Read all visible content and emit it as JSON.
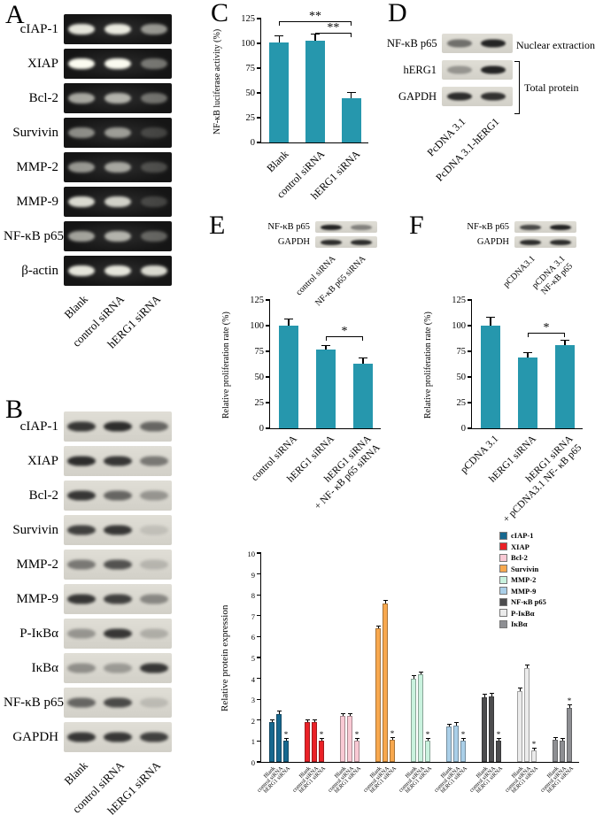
{
  "figure": {
    "panel_a": {
      "label": "A",
      "lanes": [
        "Blank",
        "control siRNA",
        "hERG1 siRNA"
      ],
      "rows": [
        {
          "name": "cIAP-1",
          "bands": [
            0.9,
            0.92,
            0.55
          ]
        },
        {
          "name": "XIAP",
          "bands": [
            1.0,
            1.0,
            0.4
          ]
        },
        {
          "name": "Bcl-2",
          "bands": [
            0.62,
            0.66,
            0.38
          ]
        },
        {
          "name": "Survivin",
          "bands": [
            0.5,
            0.55,
            0.18
          ]
        },
        {
          "name": "MMP-2",
          "bands": [
            0.55,
            0.6,
            0.22
          ]
        },
        {
          "name": "MMP-9",
          "bands": [
            0.85,
            0.8,
            0.18
          ]
        },
        {
          "name": "NF-κB p65",
          "bands": [
            0.6,
            0.66,
            0.32
          ]
        },
        {
          "name": "β-actin",
          "bands": [
            0.9,
            0.9,
            0.85
          ]
        }
      ]
    },
    "panel_b": {
      "label": "B",
      "lanes": [
        "Blank",
        "control siRNA",
        "hERG1 siRNA"
      ],
      "rows": [
        {
          "name": "cIAP-1",
          "bands": [
            0.85,
            0.9,
            0.6
          ]
        },
        {
          "name": "XIAP",
          "bands": [
            0.9,
            0.85,
            0.5
          ]
        },
        {
          "name": "Bcl-2",
          "bands": [
            0.85,
            0.6,
            0.35
          ]
        },
        {
          "name": "Survivin",
          "bands": [
            0.8,
            0.85,
            0.12
          ]
        },
        {
          "name": "MMP-2",
          "bands": [
            0.5,
            0.7,
            0.18
          ]
        },
        {
          "name": "MMP-9",
          "bands": [
            0.85,
            0.8,
            0.42
          ]
        },
        {
          "name": "P-IκBα",
          "bands": [
            0.35,
            0.85,
            0.22
          ]
        },
        {
          "name": "IκBα",
          "bands": [
            0.38,
            0.32,
            0.85
          ]
        },
        {
          "name": "NF-κB p65",
          "bands": [
            0.6,
            0.75,
            0.15
          ]
        },
        {
          "name": "GAPDH",
          "bands": [
            0.85,
            0.85,
            0.8
          ]
        }
      ]
    },
    "panel_d": {
      "label": "D",
      "lanes": [
        "PcDNA 3.1",
        "PcDNA 3.1-hERG1"
      ],
      "rows": [
        {
          "name": "NF-κB p65",
          "bands": [
            0.55,
            0.95
          ]
        },
        {
          "name": "hERG1",
          "bands": [
            0.35,
            0.95
          ]
        },
        {
          "name": "GAPDH",
          "bands": [
            0.9,
            0.88
          ]
        }
      ],
      "annotation_nuclear": "Nuclear extraction",
      "annotation_total": "Total protein"
    },
    "panel_e_inset": {
      "lanes": [
        "control siRNA",
        "NF-κB p65 siRNA"
      ],
      "rows": [
        {
          "name": "NF-κB p65",
          "bands": [
            0.95,
            0.45
          ]
        },
        {
          "name": "GAPDH",
          "bands": [
            0.9,
            0.9
          ]
        }
      ]
    },
    "panel_f_inset": {
      "lanes": [
        "pCDNA3.1",
        "pCDNA 3.1\nNF-κB p65"
      ],
      "rows": [
        {
          "name": "NF-κB p65",
          "bands": [
            0.75,
            0.95
          ]
        },
        {
          "name": "GAPDH",
          "bands": [
            0.9,
            0.9
          ]
        }
      ]
    }
  },
  "chart_data": [
    {
      "id": "C",
      "panel_label": "C",
      "type": "bar",
      "ylabel": "NF-κB luciferase activity (%)",
      "categories": [
        "Blank",
        "control siRNA",
        "hERG1 siRNA"
      ],
      "values": [
        101,
        103,
        45
      ],
      "errors": [
        6,
        6,
        5
      ],
      "ylim": [
        0,
        125
      ],
      "yticks": [
        0,
        25,
        50,
        75,
        100,
        125
      ],
      "bar_color": "#2697ad",
      "significance": [
        {
          "from": 0,
          "to": 2,
          "y": 122,
          "label": "**"
        },
        {
          "from": 1,
          "to": 2,
          "y": 111,
          "label": "**"
        }
      ]
    },
    {
      "id": "E",
      "panel_label": "E",
      "type": "bar",
      "ylabel": "Relative proliferation rate (%)",
      "categories": [
        "control siRNA",
        "hERG1 siRNA",
        "hERG1 siRNA\n+ NF- κB p65 siRNA"
      ],
      "values": [
        100,
        77,
        63
      ],
      "errors": [
        6,
        3,
        5
      ],
      "ylim": [
        0,
        125
      ],
      "yticks": [
        0,
        25,
        50,
        75,
        100,
        125
      ],
      "bar_color": "#2697ad",
      "significance": [
        {
          "from": 1,
          "to": 2,
          "y": 90,
          "label": "*"
        }
      ]
    },
    {
      "id": "F",
      "panel_label": "F",
      "type": "bar",
      "ylabel": "Relative proliferation rate (%)",
      "categories": [
        "pCDNA 3.1",
        "hERG1 siRNA",
        "hERG1 siRNA\n+ pCDNA3.1 NF- κB p65"
      ],
      "values": [
        100,
        69,
        81
      ],
      "errors": [
        8,
        4,
        4
      ],
      "ylim": [
        0,
        125
      ],
      "yticks": [
        0,
        25,
        50,
        75,
        100,
        125
      ],
      "bar_color": "#2697ad",
      "significance": [
        {
          "from": 1,
          "to": 2,
          "y": 93,
          "label": "*"
        }
      ]
    },
    {
      "id": "G",
      "type": "grouped-bar",
      "ylabel": "Relative protein expression",
      "group_categories": [
        "Blank",
        "control siRNA",
        "hERG1 siRNA"
      ],
      "ylim": [
        0,
        10
      ],
      "yticks": [
        0,
        1,
        2,
        3,
        4,
        5,
        6,
        7,
        8,
        9,
        10
      ],
      "bar_error_approx": 0.1,
      "series": [
        {
          "name": "cIAP-1",
          "color": "#16688f",
          "values": [
            1.9,
            2.3,
            1.0
          ],
          "star_index": 2
        },
        {
          "name": "XIAP",
          "color": "#ea2127",
          "values": [
            1.9,
            1.9,
            1.0
          ],
          "star_index": 2
        },
        {
          "name": "Bcl-2",
          "color": "#f9c9d4",
          "values": [
            2.2,
            2.2,
            1.0
          ],
          "star_index": 2
        },
        {
          "name": "Survivin",
          "color": "#f8a84e",
          "values": [
            6.4,
            7.6,
            1.05
          ],
          "star_index": 2
        },
        {
          "name": "MMP-2",
          "color": "#c9f2de",
          "values": [
            4.0,
            4.2,
            1.0
          ],
          "star_index": 2
        },
        {
          "name": "MMP-9",
          "color": "#aacfe8",
          "values": [
            1.7,
            1.75,
            1.0
          ],
          "star_index": 2
        },
        {
          "name": "NF-κB p65",
          "color": "#4c4c4e",
          "values": [
            3.1,
            3.15,
            1.0
          ],
          "star_index": 2
        },
        {
          "name": "P-IκBα",
          "color": "#ebebeb",
          "values": [
            3.4,
            4.5,
            0.55
          ],
          "star_index": 2
        },
        {
          "name": "IκBα",
          "color": "#8e8f93",
          "values": [
            1.05,
            1.0,
            2.6
          ],
          "star_index": 2
        }
      ]
    }
  ]
}
